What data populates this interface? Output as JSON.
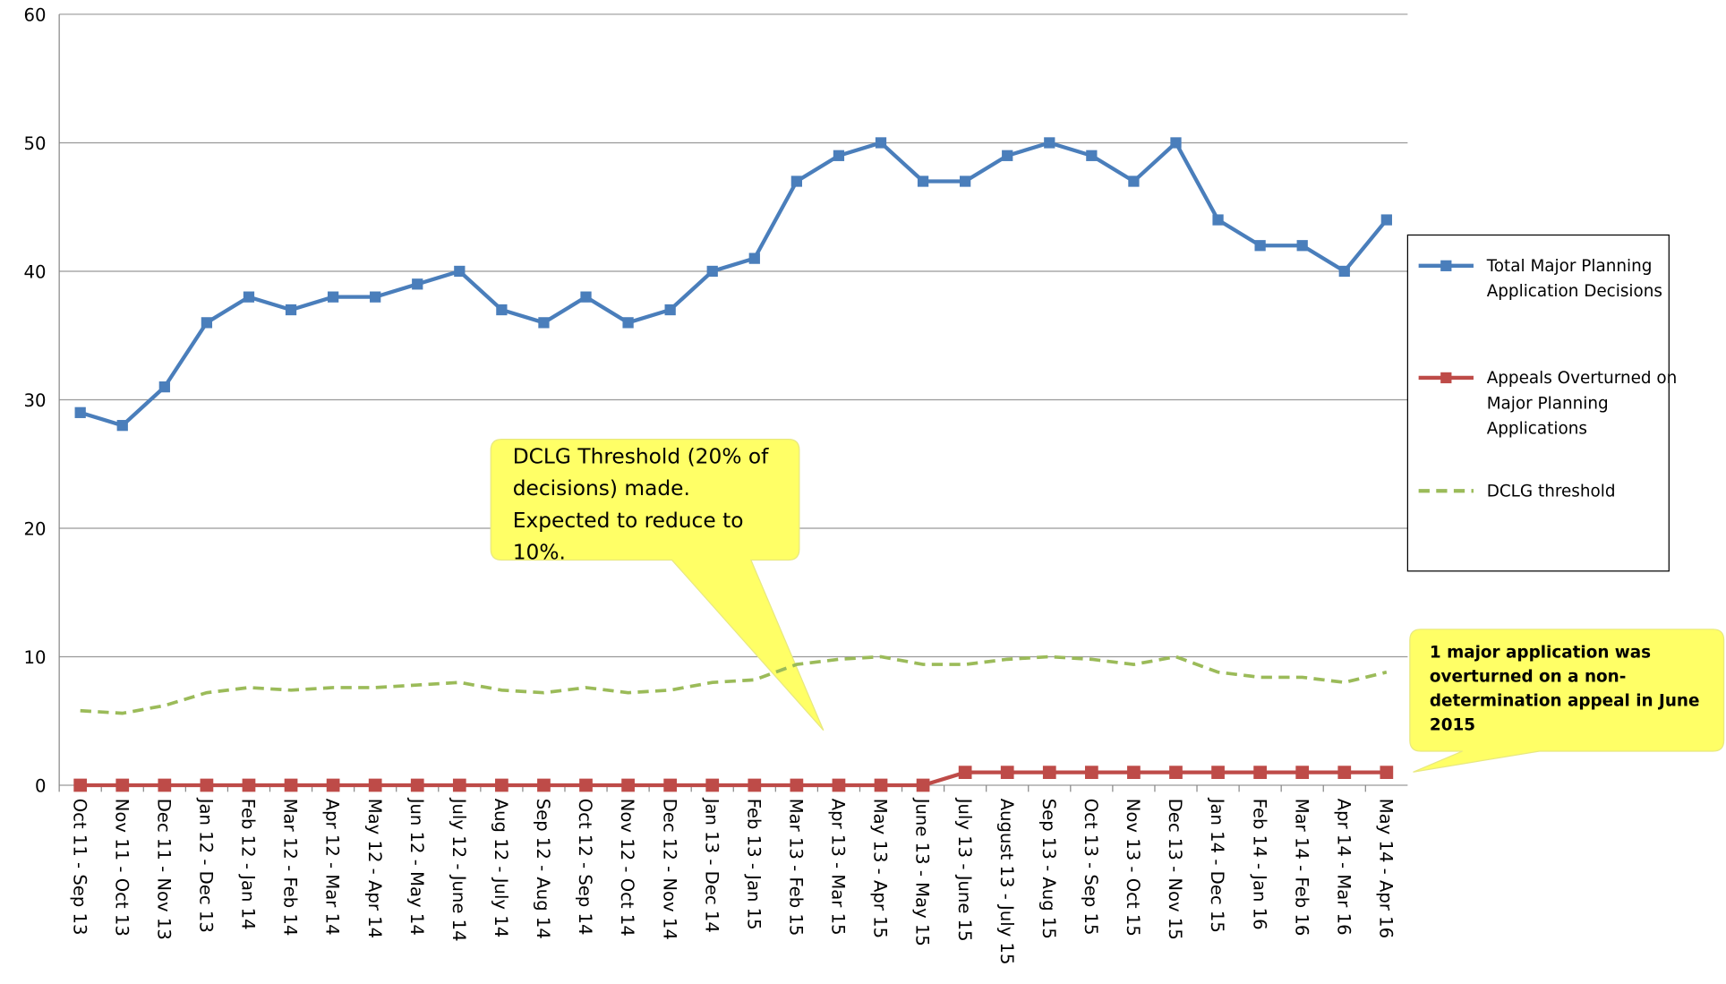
{
  "chart_data": {
    "type": "line",
    "categories": [
      "Oct 11 - Sep 13",
      "Nov 11 - Oct 13",
      "Dec 11 - Nov 13",
      "Jan 12 - Dec 13",
      "Feb 12 - Jan 14",
      "Mar 12 - Feb 14",
      "Apr 12 - Mar 14",
      "May 12 - Apr 14",
      "Jun 12 - May 14",
      "July 12 - June 14",
      "Aug 12 - July 14",
      "Sep 12 - Aug 14",
      "Oct 12 - Sep 14",
      "Nov 12 - Oct 14",
      "Dec 12 - Nov 14",
      "Jan 13 - Dec 14",
      "Feb 13 - Jan 15",
      "Mar 13 - Feb 15",
      "Apr 13 - Mar 15",
      "May 13 - Apr 15",
      "June 13 - May 15",
      "July 13 - June 15",
      "August 13 - July 15",
      "Sep 13 - Aug 15",
      "Oct 13 - Sep 15",
      "Nov 13 - Oct 15",
      "Dec 13 - Nov 15",
      "Jan 14 - Dec 15",
      "Feb 14 - Jan 16",
      "Mar 14 - Feb 16",
      "Apr 14 - Mar 16",
      "May 14 - Apr 16"
    ],
    "series": [
      {
        "name": "Total Major Planning Application Decisions",
        "color": "#4a7ebb",
        "marker": "square",
        "values": [
          29,
          28,
          31,
          36,
          38,
          37,
          38,
          38,
          39,
          40,
          37,
          36,
          38,
          36,
          37,
          40,
          41,
          47,
          49,
          50,
          47,
          47,
          49,
          50,
          49,
          47,
          50,
          44,
          42,
          42,
          40,
          44
        ]
      },
      {
        "name": "Appeals Overturned on Major Planning Applications",
        "color": "#be4b48",
        "marker": "square",
        "values": [
          0,
          0,
          0,
          0,
          0,
          0,
          0,
          0,
          0,
          0,
          0,
          0,
          0,
          0,
          0,
          0,
          0,
          0,
          0,
          0,
          0,
          1,
          1,
          1,
          1,
          1,
          1,
          1,
          1,
          1,
          1,
          1
        ]
      },
      {
        "name": "DCLG threshold",
        "color": "#9bbb59",
        "dashed": true,
        "values": [
          5.8,
          5.6,
          6.2,
          7.2,
          7.6,
          7.4,
          7.6,
          7.6,
          7.8,
          8,
          7.4,
          7.2,
          7.6,
          7.2,
          7.4,
          8,
          8.2,
          9.4,
          9.8,
          10,
          9.4,
          9.4,
          9.8,
          10,
          9.8,
          9.4,
          10,
          8.8,
          8.4,
          8.4,
          8,
          8.8
        ]
      }
    ],
    "ylim": [
      0,
      60
    ],
    "yticks": [
      0,
      10,
      20,
      30,
      40,
      50,
      60
    ],
    "grid": true,
    "legend": "right",
    "annotations": [
      {
        "lines": [
          "DCLG Threshold (20% of",
          "decisions) made.",
          "Expected to reduce to",
          "10%."
        ]
      },
      {
        "lines": [
          "1 major  application was",
          "overturned on a non-",
          "determination appeal in June",
          "2015"
        ]
      }
    ]
  }
}
